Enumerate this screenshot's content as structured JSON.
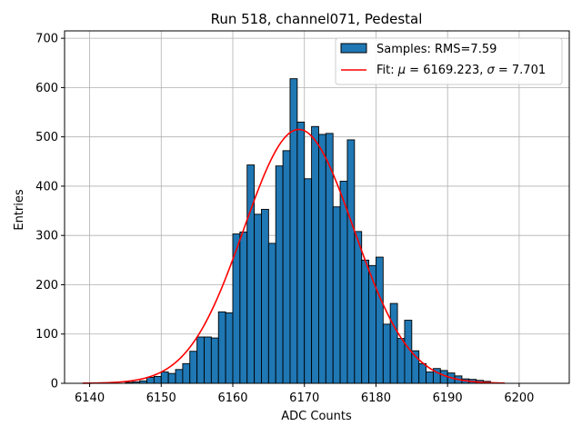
{
  "chart_data": {
    "type": "bar",
    "title": "Run 518, channel071, Pedestal",
    "xlabel": "ADC Counts",
    "ylabel": "Entries",
    "xlim": [
      6136.5,
      6207
    ],
    "ylim": [
      0,
      715
    ],
    "xticks": [
      6140,
      6150,
      6160,
      6170,
      6180,
      6190,
      6200
    ],
    "yticks": [
      0,
      100,
      200,
      300,
      400,
      500,
      600,
      700
    ],
    "grid": true,
    "legend_position": "top-right",
    "colors": {
      "bars": "#1f77b4",
      "bar_edge": "#000000",
      "fit": "#ff0000",
      "grid": "#b0b0b0"
    },
    "histogram": {
      "name": "Samples: RMS=7.59",
      "bin_width": 1,
      "bins_start": 6145,
      "values": [
        2,
        3,
        5,
        12,
        14,
        23,
        20,
        28,
        40,
        65,
        94,
        94,
        92,
        145,
        143,
        303,
        307,
        443,
        343,
        353,
        284,
        441,
        472,
        618,
        530,
        415,
        521,
        505,
        507,
        358,
        410,
        494,
        308,
        250,
        239,
        256,
        120,
        162,
        91,
        128,
        66,
        40,
        23,
        30,
        26,
        21,
        15,
        9,
        8,
        6,
        4
      ]
    },
    "fit": {
      "name": "Fit: μ = 6169.223, σ = 7.701",
      "legend_prefix": "Fit: ",
      "mu_value": " = 6169.223, ",
      "sigma_value": " = 7.701",
      "mu": 6169.223,
      "sigma": 7.701,
      "amplitude": 515,
      "x_range": [
        6139,
        6198
      ]
    }
  }
}
